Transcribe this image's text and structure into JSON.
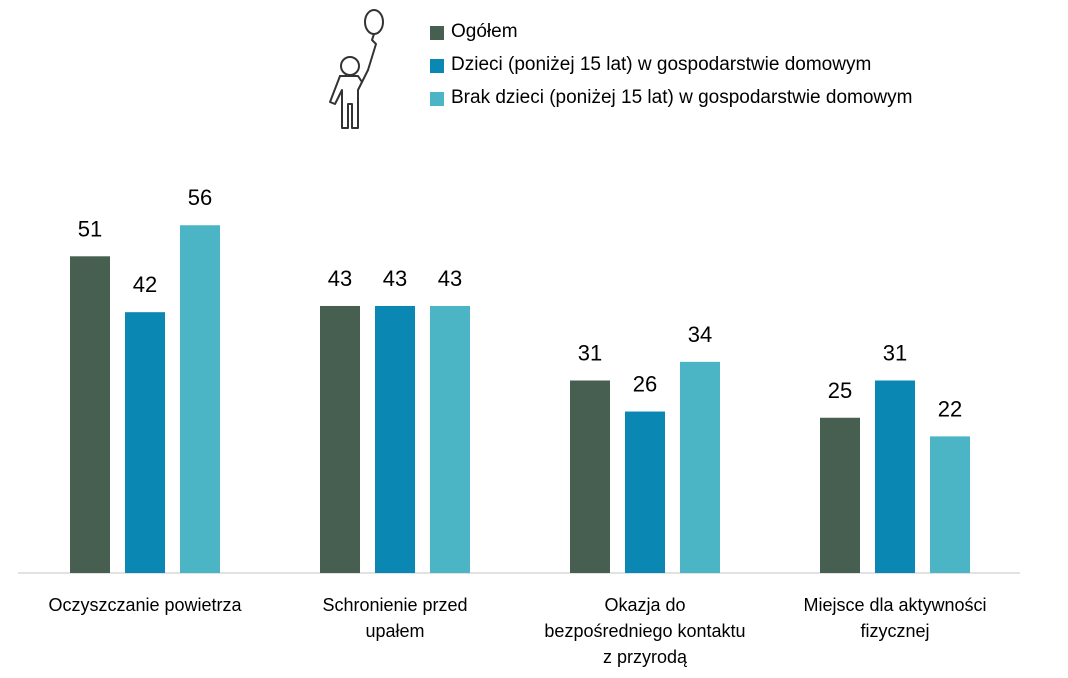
{
  "chart_data": {
    "type": "bar",
    "categories": [
      "Oczyszczanie powietrza",
      "Schronienie przed\nupałem",
      "Okazja do\nbezpośredniego kontaktu\nz przyrodą",
      "Miejsce dla aktywności\nfizycznej"
    ],
    "series": [
      {
        "name": "Ogółem",
        "color": "#475f50",
        "values": [
          51,
          43,
          31,
          25
        ]
      },
      {
        "name": "Dzieci (poniżej 15 lat) w gospodarstwie domowym",
        "color": "#0b87b4",
        "values": [
          42,
          43,
          26,
          31
        ]
      },
      {
        "name": "Brak dzieci (poniżej 15 lat) w gospodarstwie domowym",
        "color": "#4bb5c5",
        "values": [
          56,
          43,
          34,
          22
        ]
      }
    ]
  }
}
